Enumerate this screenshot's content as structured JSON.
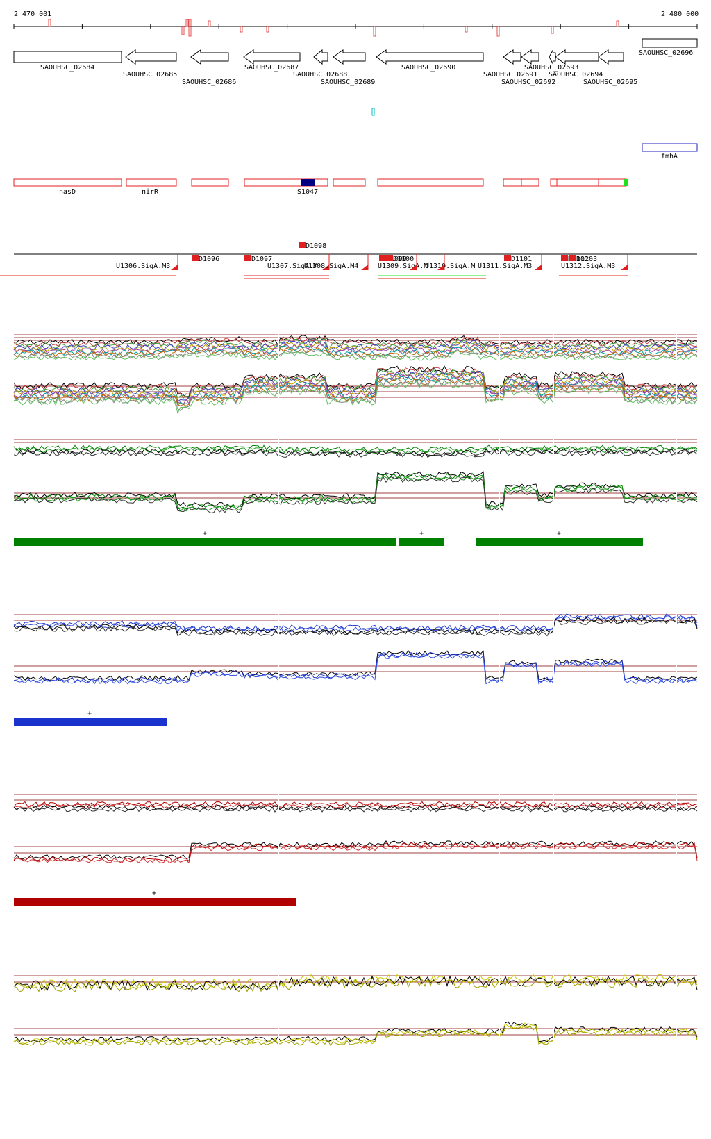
{
  "ruler": {
    "start_label": "2 470 001",
    "end_label": "2 480 000"
  },
  "genes": [
    {
      "id": "SAOUHSC_02684",
      "strand": "+"
    },
    {
      "id": "SAOUHSC_02685",
      "strand": "-"
    },
    {
      "id": "SAOUHSC_02686",
      "strand": "-"
    },
    {
      "id": "SAOUHSC_02687",
      "strand": "-"
    },
    {
      "id": "SAOUHSC_02688",
      "strand": "-"
    },
    {
      "id": "SAOUHSC_02689",
      "strand": "-"
    },
    {
      "id": "SAOUHSC_02690",
      "strand": "-"
    },
    {
      "id": "SAOUHSC_02691",
      "strand": "-"
    },
    {
      "id": "SAOUHSC_02692",
      "strand": "-"
    },
    {
      "id": "SAOUHSC_02693",
      "strand": "-"
    },
    {
      "id": "SAOUHSC_02694",
      "strand": "-"
    },
    {
      "id": "SAOUHSC_02695",
      "strand": "-"
    },
    {
      "id": "SAOUHSC_02696",
      "strand": "+"
    }
  ],
  "annotations": {
    "fmhA_label": "fmhA",
    "nasD_label": "nasD",
    "nirR_label": "nirR",
    "s1047_label": "S1047"
  },
  "features": {
    "d_labels": [
      "D1096",
      "D1097",
      "D1098",
      "D1099",
      "D1100",
      "D1101",
      "D1102",
      "D1103"
    ],
    "u_labels": [
      "U1306.SigA.M3",
      "U1307.SigA.M",
      "U1308.SigA.M4",
      "U1309.SigA.M",
      "U1310.SigA.M",
      "U1311.SigA.M3",
      "U1312.SigA.M3"
    ]
  },
  "segment_marks": {
    "plus_symbol": "+"
  },
  "colors": {
    "gene_outline": "#000000",
    "red_feature": "#e02020",
    "dark_blue": "#000080",
    "cyan": "#00c0c0",
    "light_green": "#20e020",
    "green_track": "#008000",
    "blue_track": "#1a33cc",
    "red_track": "#b00000",
    "yellow_track": "#c8c800",
    "reference_line": "#a04040"
  }
}
